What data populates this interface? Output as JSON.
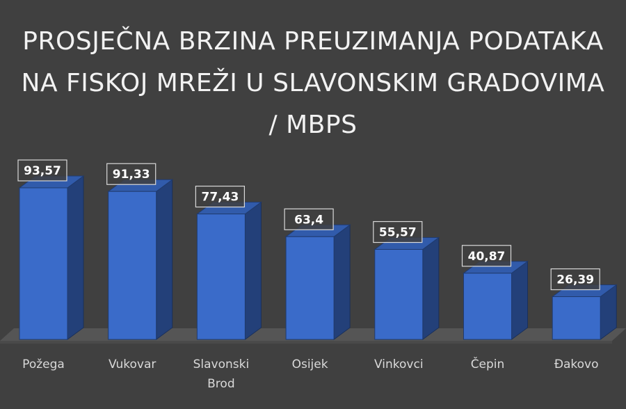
{
  "chart_data": {
    "type": "bar",
    "title": "PROSJEČNA BRZINA PREUZIMANJA PODATAKA NA FISKOJ MREŽI U SLAVONSKIM GRADOVIMA / MBPS",
    "categories": [
      "Požega",
      "Vukovar",
      "Slavonski Brod",
      "Osijek",
      "Vinkovci",
      "Čepin",
      "Đakovo"
    ],
    "values": [
      93.57,
      91.33,
      77.43,
      63.4,
      55.57,
      40.87,
      26.39
    ],
    "value_labels": [
      "93,57",
      "91,33",
      "77,43",
      "63,4",
      "55,57",
      "40,87",
      "26,39"
    ],
    "color": "#3a6bc9"
  }
}
